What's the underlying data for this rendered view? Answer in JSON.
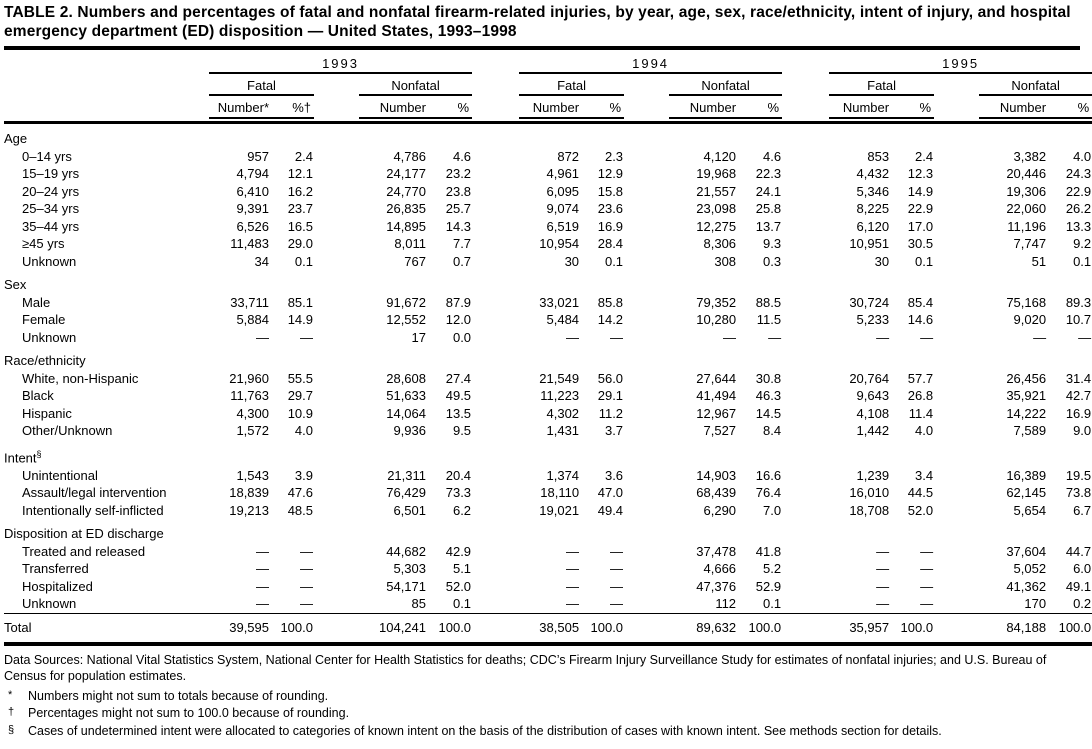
{
  "title": "TABLE 2. Numbers and percentages of fatal and nonfatal firearm-related injuries, by year, age, sex, race/ethnicity, intent of injury, and hospital emergency department (ED) disposition — United States, 1993–1998",
  "table": {
    "years": [
      {
        "label": "1993",
        "fatal": {
          "label": "Fatal",
          "number": "Number*",
          "pct": "%†"
        },
        "nonfatal": {
          "label": "Nonfatal",
          "number": "Number",
          "pct": "%"
        }
      },
      {
        "label": "1994",
        "fatal": {
          "label": "Fatal",
          "number": "Number",
          "pct": "%"
        },
        "nonfatal": {
          "label": "Nonfatal",
          "number": "Number",
          "pct": "%"
        }
      },
      {
        "label": "1995",
        "fatal": {
          "label": "Fatal",
          "number": "Number",
          "pct": "%"
        },
        "nonfatal": {
          "label": "Nonfatal",
          "number": "Number",
          "pct": "%"
        }
      }
    ],
    "sections": [
      {
        "label": "Age",
        "marker": "",
        "rows": [
          {
            "label": "0–14 yrs",
            "values": [
              "957",
              "2.4",
              "4,786",
              "4.6",
              "872",
              "2.3",
              "4,120",
              "4.6",
              "853",
              "2.4",
              "3,382",
              "4.0"
            ]
          },
          {
            "label": "15–19 yrs",
            "values": [
              "4,794",
              "12.1",
              "24,177",
              "23.2",
              "4,961",
              "12.9",
              "19,968",
              "22.3",
              "4,432",
              "12.3",
              "20,446",
              "24.3"
            ]
          },
          {
            "label": "20–24 yrs",
            "values": [
              "6,410",
              "16.2",
              "24,770",
              "23.8",
              "6,095",
              "15.8",
              "21,557",
              "24.1",
              "5,346",
              "14.9",
              "19,306",
              "22.9"
            ]
          },
          {
            "label": "25–34 yrs",
            "values": [
              "9,391",
              "23.7",
              "26,835",
              "25.7",
              "9,074",
              "23.6",
              "23,098",
              "25.8",
              "8,225",
              "22.9",
              "22,060",
              "26.2"
            ]
          },
          {
            "label": "35–44 yrs",
            "values": [
              "6,526",
              "16.5",
              "14,895",
              "14.3",
              "6,519",
              "16.9",
              "12,275",
              "13.7",
              "6,120",
              "17.0",
              "11,196",
              "13.3"
            ]
          },
          {
            "label": "≥45 yrs",
            "values": [
              "11,483",
              "29.0",
              "8,011",
              "7.7",
              "10,954",
              "28.4",
              "8,306",
              "9.3",
              "10,951",
              "30.5",
              "7,747",
              "9.2"
            ]
          },
          {
            "label": "Unknown",
            "values": [
              "34",
              "0.1",
              "767",
              "0.7",
              "30",
              "0.1",
              "308",
              "0.3",
              "30",
              "0.1",
              "51",
              "0.1"
            ]
          }
        ]
      },
      {
        "label": "Sex",
        "marker": "",
        "rows": [
          {
            "label": "Male",
            "values": [
              "33,711",
              "85.1",
              "91,672",
              "87.9",
              "33,021",
              "85.8",
              "79,352",
              "88.5",
              "30,724",
              "85.4",
              "75,168",
              "89.3"
            ]
          },
          {
            "label": "Female",
            "values": [
              "5,884",
              "14.9",
              "12,552",
              "12.0",
              "5,484",
              "14.2",
              "10,280",
              "11.5",
              "5,233",
              "14.6",
              "9,020",
              "10.7"
            ]
          },
          {
            "label": "Unknown",
            "values": [
              "—",
              "—",
              "17",
              "0.0",
              "—",
              "—",
              "—",
              "—",
              "—",
              "—",
              "—",
              "—"
            ]
          }
        ]
      },
      {
        "label": "Race/ethnicity",
        "marker": "",
        "rows": [
          {
            "label": "White, non-Hispanic",
            "values": [
              "21,960",
              "55.5",
              "28,608",
              "27.4",
              "21,549",
              "56.0",
              "27,644",
              "30.8",
              "20,764",
              "57.7",
              "26,456",
              "31.4"
            ]
          },
          {
            "label": "Black",
            "values": [
              "11,763",
              "29.7",
              "51,633",
              "49.5",
              "11,223",
              "29.1",
              "41,494",
              "46.3",
              "9,643",
              "26.8",
              "35,921",
              "42.7"
            ]
          },
          {
            "label": "Hispanic",
            "values": [
              "4,300",
              "10.9",
              "14,064",
              "13.5",
              "4,302",
              "11.2",
              "12,967",
              "14.5",
              "4,108",
              "11.4",
              "14,222",
              "16.9"
            ]
          },
          {
            "label": "Other/Unknown",
            "values": [
              "1,572",
              "4.0",
              "9,936",
              "9.5",
              "1,431",
              "3.7",
              "7,527",
              "8.4",
              "1,442",
              "4.0",
              "7,589",
              "9.0"
            ]
          }
        ]
      },
      {
        "label": "Intent",
        "marker": "§",
        "rows": [
          {
            "label": "Unintentional",
            "values": [
              "1,543",
              "3.9",
              "21,311",
              "20.4",
              "1,374",
              "3.6",
              "14,903",
              "16.6",
              "1,239",
              "3.4",
              "16,389",
              "19.5"
            ]
          },
          {
            "label": "Assault/legal intervention",
            "values": [
              "18,839",
              "47.6",
              "76,429",
              "73.3",
              "18,110",
              "47.0",
              "68,439",
              "76.4",
              "16,010",
              "44.5",
              "62,145",
              "73.8"
            ]
          },
          {
            "label": "Intentionally self-inflicted",
            "values": [
              "19,213",
              "48.5",
              "6,501",
              "6.2",
              "19,021",
              "49.4",
              "6,290",
              "7.0",
              "18,708",
              "52.0",
              "5,654",
              "6.7"
            ]
          }
        ]
      },
      {
        "label": "Disposition at ED discharge",
        "marker": "",
        "rows": [
          {
            "label": "Treated and released",
            "values": [
              "—",
              "—",
              "44,682",
              "42.9",
              "—",
              "—",
              "37,478",
              "41.8",
              "—",
              "—",
              "37,604",
              "44.7"
            ]
          },
          {
            "label": "Transferred",
            "values": [
              "—",
              "—",
              "5,303",
              "5.1",
              "—",
              "—",
              "4,666",
              "5.2",
              "—",
              "—",
              "5,052",
              "6.0"
            ]
          },
          {
            "label": "Hospitalized",
            "values": [
              "—",
              "—",
              "54,171",
              "52.0",
              "—",
              "—",
              "47,376",
              "52.9",
              "—",
              "—",
              "41,362",
              "49.1"
            ]
          },
          {
            "label": "Unknown",
            "values": [
              "—",
              "—",
              "85",
              "0.1",
              "—",
              "—",
              "112",
              "0.1",
              "—",
              "—",
              "170",
              "0.2"
            ]
          }
        ]
      }
    ],
    "total": {
      "label": "Total",
      "values": [
        "39,595",
        "100.0",
        "104,241",
        "100.0",
        "38,505",
        "100.0",
        "89,632",
        "100.0",
        "35,957",
        "100.0",
        "84,188",
        "100.0"
      ]
    }
  },
  "footnotes": {
    "sources": "Data Sources: National Vital Statistics System, National Center for Health Statistics for deaths; CDC’s Firearm Injury Surveillance Study for estimates of nonfatal injuries; and U.S. Bureau of Census for population estimates.",
    "notes": [
      {
        "marker": "*",
        "text": "Numbers might not sum to totals because of rounding."
      },
      {
        "marker": "†",
        "text": "Percentages might not sum to 100.0 because of rounding."
      },
      {
        "marker": "§",
        "text": "Cases of undetermined intent were allocated to categories of known intent on the basis of the distribution of cases with known intent. See methods section for details."
      }
    ]
  }
}
